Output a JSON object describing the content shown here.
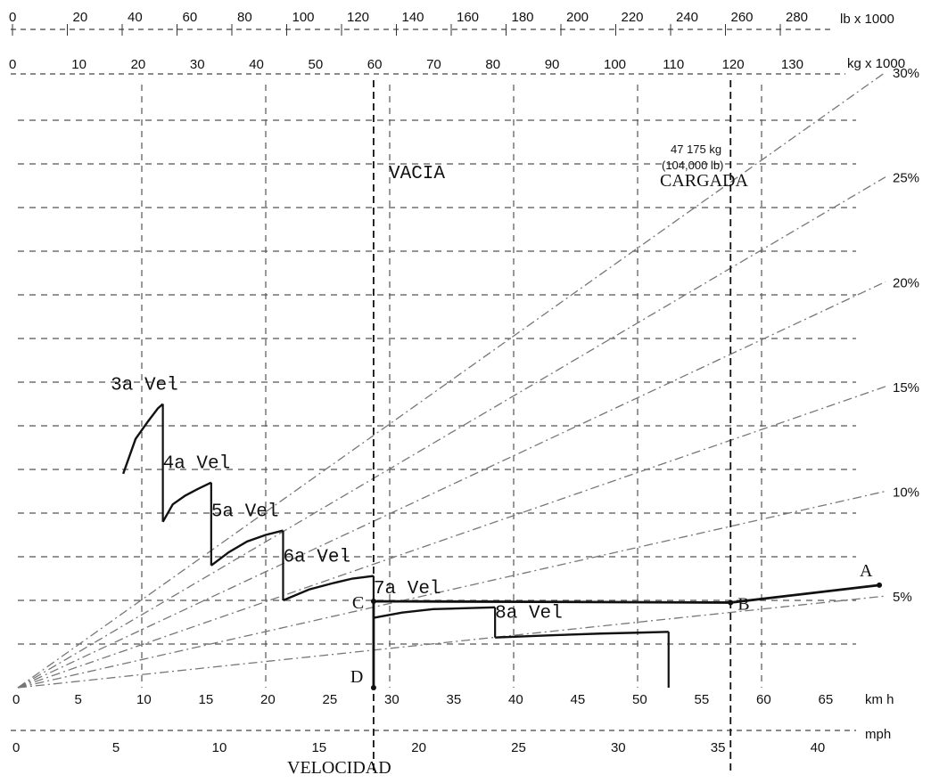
{
  "chart_data": {
    "type": "line",
    "title": "",
    "xlabel": "VELOCIDAD",
    "ylabel": "",
    "x_unit_primary": "km h",
    "x_unit_secondary": "mph",
    "y_unit_primary": "kg x 1000",
    "y_unit_secondary": "lb x 1000",
    "axis_position": "top",
    "xlim": [
      0,
      70
    ],
    "ylim": [
      0,
      140
    ],
    "grid": true,
    "x_ticks_kmh": [
      "0",
      "5",
      "10",
      "15",
      "20",
      "25",
      "30",
      "35",
      "40",
      "45",
      "50",
      "55",
      "60",
      "65"
    ],
    "x_ticks_mph": [
      "0",
      "5",
      "10",
      "15",
      "20",
      "25",
      "30",
      "35",
      "40"
    ],
    "top_ticks_kg": [
      "0",
      "10",
      "20",
      "30",
      "40",
      "50",
      "60",
      "70",
      "80",
      "90",
      "100",
      "110",
      "120",
      "130"
    ],
    "top_ticks_lb": [
      "0",
      "20",
      "40",
      "60",
      "80",
      "100",
      "120",
      "140",
      "160",
      "180",
      "200",
      "220",
      "240",
      "260",
      "280"
    ],
    "load_lines": [
      {
        "label": "30%",
        "x": [
          0,
          70
        ],
        "y": [
          0,
          141
        ]
      },
      {
        "label": "25%",
        "x": [
          0,
          70
        ],
        "y": [
          0,
          117
        ]
      },
      {
        "label": "20%",
        "x": [
          0,
          70
        ],
        "y": [
          0,
          93
        ]
      },
      {
        "label": "15%",
        "x": [
          0,
          70
        ],
        "y": [
          0,
          69
        ]
      },
      {
        "label": "10%",
        "x": [
          0,
          70
        ],
        "y": [
          0,
          45
        ]
      },
      {
        "label": "5%",
        "x": [
          0,
          70
        ],
        "y": [
          0,
          21
        ]
      }
    ],
    "series": [
      {
        "name": "3a Vel",
        "x": [
          8.5,
          9.5,
          10.5,
          11.3,
          11.7
        ],
        "y": [
          49,
          57,
          61,
          64,
          65
        ]
      },
      {
        "name": "4a Vel",
        "x": [
          11.7,
          12.5,
          13.5,
          14.5,
          15.6
        ],
        "y": [
          38,
          42,
          44,
          45.5,
          47
        ]
      },
      {
        "name": "5a Vel",
        "x": [
          15.6,
          17,
          18.5,
          20,
          21.4
        ],
        "y": [
          28,
          31,
          33.5,
          35,
          36
        ]
      },
      {
        "name": "6a Vel",
        "x": [
          21.4,
          23.5,
          25.5,
          27,
          28.7
        ],
        "y": [
          20,
          22.5,
          24,
          25,
          25.6
        ]
      },
      {
        "name": "7a Vel",
        "x": [
          28.7,
          31,
          33.5,
          36,
          38.5
        ],
        "y": [
          16,
          17.2,
          18,
          18.2,
          18.4
        ]
      },
      {
        "name": "8a Vel",
        "x": [
          38.5,
          43,
          47,
          50,
          52.5
        ],
        "y": [
          11.5,
          12,
          12.4,
          12.6,
          12.8
        ]
      }
    ],
    "gear_drops": [
      {
        "x": 11.7,
        "y_from": 65,
        "y_to": 38
      },
      {
        "x": 15.6,
        "y_from": 47,
        "y_to": 28
      },
      {
        "x": 21.4,
        "y_from": 36,
        "y_to": 20
      },
      {
        "x": 28.7,
        "y_from": 25.6,
        "y_to": 16
      },
      {
        "x": 38.5,
        "y_from": 18.4,
        "y_to": 11.5
      },
      {
        "x": 52.5,
        "y_from": 12.8,
        "y_to": 0
      }
    ],
    "path": [
      {
        "label": "A",
        "x": 69.5,
        "y": 23.5
      },
      {
        "label": "B",
        "x": 57.5,
        "y": 19.5
      },
      {
        "label": "C",
        "x": 28.7,
        "y": 19.8
      },
      {
        "label": "D",
        "x": 28.7,
        "y": 0
      }
    ],
    "annotations": [
      {
        "text": "VACIA",
        "x": 36,
        "y": 62
      },
      {
        "text": "CARGADA",
        "x": 58.5,
        "y": 61
      },
      {
        "text": "47 175 kg",
        "x": 58.5,
        "y": 67
      },
      {
        "text": "(104,000 lb)",
        "x": 58.5,
        "y": 64
      }
    ],
    "reference_lines_x": [
      28.7,
      57.5
    ]
  }
}
